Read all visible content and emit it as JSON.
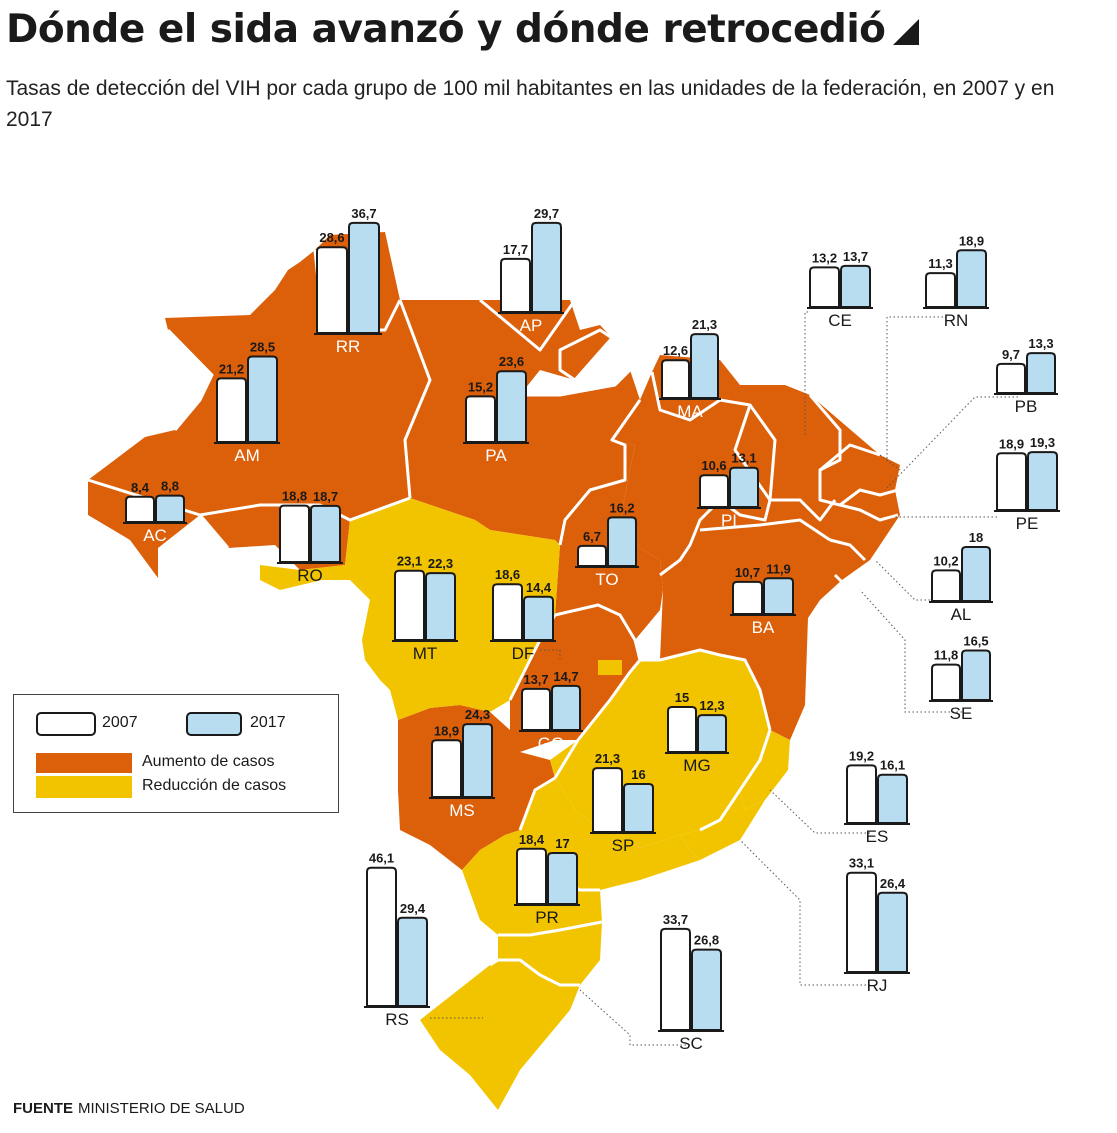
{
  "title": "Dónde el sida avanzó y dónde retrocedió",
  "subtitle": "Tasas de detección del VIH por cada grupo de 100 mil habitantes en las unidades de la federación, en 2007 y en 2017",
  "source_label": "FUENTE",
  "source_text": "MINISTERIO DE SALUD",
  "colors": {
    "increase": "#dc5f09",
    "decrease": "#f2c400",
    "bar_2007": "#ffffff",
    "bar_2017": "#b8ddf0",
    "outline": "#1a1a1a"
  },
  "legend": {
    "year_2007": "2007",
    "year_2017": "2017",
    "increase": "Aumento de casos",
    "decrease": "Reducción de casos"
  },
  "chart_data": {
    "type": "bar",
    "categories": [
      "RR",
      "AP",
      "AM",
      "PA",
      "MA",
      "CE",
      "RN",
      "PB",
      "PE",
      "AL",
      "SE",
      "BA",
      "PI",
      "TO",
      "AC",
      "RO",
      "MT",
      "DF",
      "GO",
      "MG",
      "ES",
      "RJ",
      "SP",
      "MS",
      "PR",
      "SC",
      "RS"
    ],
    "series": [
      {
        "name": "2007",
        "values": [
          28.6,
          17.7,
          21.2,
          15.2,
          12.6,
          13.2,
          11.3,
          9.7,
          18.9,
          10.2,
          11.8,
          10.7,
          10.6,
          6.7,
          8.4,
          18.8,
          23.1,
          18.6,
          13.7,
          15,
          19.2,
          33.1,
          21.3,
          18.9,
          18.4,
          33.7,
          46.1
        ]
      },
      {
        "name": "2017",
        "values": [
          36.7,
          29.7,
          28.5,
          23.6,
          21.3,
          13.7,
          18.9,
          13.3,
          19.3,
          18,
          16.5,
          11.9,
          13.1,
          16.2,
          8.8,
          18.7,
          22.3,
          14.4,
          14.7,
          12.3,
          16.1,
          26.4,
          16,
          24.3,
          17,
          26.8,
          29.4
        ]
      }
    ],
    "labels_2007": [
      "28,6",
      "17,7",
      "21,2",
      "15,2",
      "12,6",
      "13,2",
      "11,3",
      "9,7",
      "18,9",
      "10,2",
      "11,8",
      "10,7",
      "10,6",
      "6,7",
      "8,4",
      "18,8",
      "23,1",
      "18,6",
      "13,7",
      "15",
      "19,2",
      "33,1",
      "21,3",
      "18,9",
      "18,4",
      "33,7",
      "46,1"
    ],
    "labels_2017": [
      "36,7",
      "29,7",
      "28,5",
      "23,6",
      "21,3",
      "13,7",
      "18,9",
      "13,3",
      "19,3",
      "18",
      "16,5",
      "11,9",
      "13,1",
      "16,2",
      "8,8",
      "18,7",
      "22,3",
      "14,4",
      "14,7",
      "12,3",
      "16,1",
      "26,4",
      "16",
      "24,3",
      "17",
      "26,8",
      "29,4"
    ],
    "trend": [
      "increase",
      "increase",
      "increase",
      "increase",
      "increase",
      "increase",
      "increase",
      "increase",
      "increase",
      "increase",
      "increase",
      "increase",
      "increase",
      "increase",
      "increase",
      "decrease",
      "decrease",
      "decrease",
      "increase",
      "decrease",
      "decrease",
      "decrease",
      "decrease",
      "increase",
      "decrease",
      "decrease",
      "decrease"
    ]
  }
}
